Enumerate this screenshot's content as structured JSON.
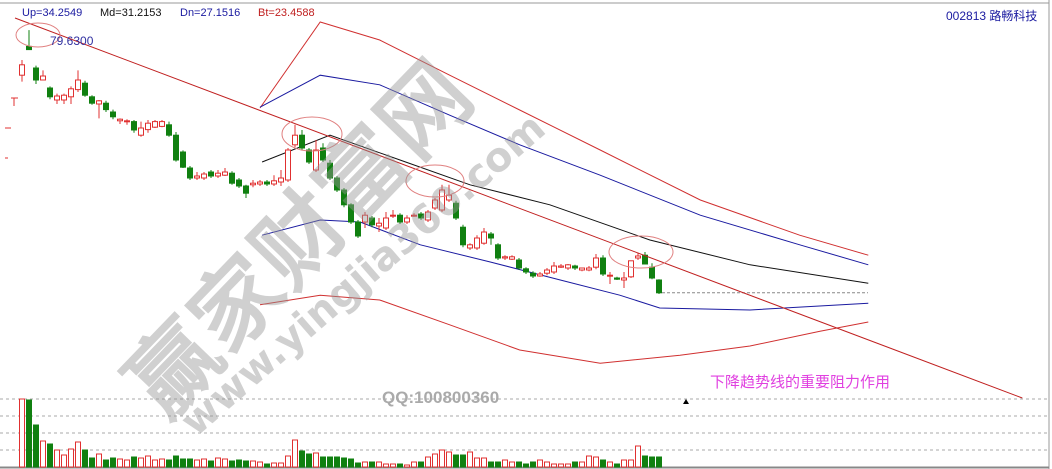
{
  "header": {
    "up": {
      "text": "Up=34.2549",
      "color": "#1a1aa0"
    },
    "md": {
      "text": "Md=31.2153",
      "color": "#111111"
    },
    "dn": {
      "text": "Dn=27.1516",
      "color": "#1a1aa0"
    },
    "bt": {
      "text": "Bt=23.4588",
      "color": "#c02020"
    },
    "stock": "002813 路畅科技"
  },
  "watermark": {
    "brand": "赢家财富网",
    "site": "www.yingjia360.com",
    "qq": "QQ:100800360"
  },
  "annotation": "下降趋势线的重要阻力作用",
  "colors": {
    "up": "#e03030",
    "down": "#108010",
    "trendline": "#c02020",
    "boll_outer": "#d03030",
    "boll_inner": "#1a1aa0",
    "boll_mid": "#111111",
    "annotation": "#e040e0"
  },
  "chart_data": {
    "type": "candlestick",
    "high_label": "79.6300",
    "candles": [
      [
        74.0,
        75.9,
        73.2,
        75.3
      ],
      [
        77.6,
        79.63,
        77.2,
        77.2
      ],
      [
        74.9,
        75.2,
        72.9,
        73.4
      ],
      [
        73.4,
        74.6,
        73.4,
        73.9
      ],
      [
        72.4,
        72.6,
        71.0,
        71.3
      ],
      [
        70.9,
        71.7,
        70.4,
        71.4
      ],
      [
        70.9,
        71.7,
        70.4,
        71.5
      ],
      [
        71.3,
        72.6,
        70.4,
        72.3
      ],
      [
        72.2,
        74.6,
        71.9,
        73.4
      ],
      [
        73.0,
        73.3,
        71.3,
        71.5
      ],
      [
        71.3,
        71.5,
        70.3,
        70.5
      ],
      [
        70.4,
        70.9,
        68.6,
        70.8
      ],
      [
        70.5,
        70.8,
        69.4,
        69.7
      ],
      [
        69.4,
        69.7,
        68.5,
        68.8
      ],
      [
        68.3,
        68.6,
        67.9,
        68.5
      ],
      [
        68.2,
        68.5,
        67.8,
        68.3
      ],
      [
        68.2,
        68.4,
        66.8,
        67.15
      ],
      [
        66.5,
        68.2,
        66.3,
        67.4
      ],
      [
        67.2,
        68.4,
        66.8,
        68.0
      ],
      [
        67.5,
        68.4,
        67.4,
        68.2
      ],
      [
        67.6,
        68.4,
        67.5,
        68.2
      ],
      [
        67.8,
        68.2,
        66.3,
        66.5
      ],
      [
        66.5,
        66.9,
        63.2,
        63.4
      ],
      [
        64.4,
        64.6,
        62.4,
        62.5
      ],
      [
        62.4,
        62.65,
        60.9,
        61.15
      ],
      [
        61.15,
        61.9,
        60.9,
        61.4
      ],
      [
        61.15,
        61.9,
        60.9,
        61.65
      ],
      [
        61.9,
        62.15,
        61.15,
        61.4
      ],
      [
        61.4,
        62.15,
        61.15,
        61.75
      ],
      [
        61.5,
        62.4,
        61.4,
        61.9
      ],
      [
        61.75,
        62.0,
        60.3,
        60.5
      ],
      [
        60.9,
        61.15,
        59.9,
        60.15
      ],
      [
        60.15,
        60.3,
        58.65,
        59.25
      ],
      [
        60.3,
        60.9,
        60.0,
        60.5
      ],
      [
        60.4,
        60.9,
        60.15,
        60.65
      ],
      [
        60.65,
        60.9,
        60.15,
        60.4
      ],
      [
        60.4,
        61.5,
        60.15,
        60.8
      ],
      [
        60.65,
        62.15,
        60.15,
        61.15
      ],
      [
        60.9,
        64.9,
        60.65,
        64.65
      ],
      [
        65.3,
        67.8,
        65.0,
        66.5
      ],
      [
        66.5,
        67.15,
        64.65,
        64.9
      ],
      [
        64.65,
        64.9,
        62.9,
        63.15
      ],
      [
        62.15,
        65.9,
        61.9,
        64.65
      ],
      [
        64.9,
        65.5,
        63.15,
        63.4
      ],
      [
        63.0,
        63.4,
        60.9,
        61.15
      ],
      [
        61.15,
        61.4,
        59.4,
        59.65
      ],
      [
        59.65,
        59.9,
        57.5,
        57.8
      ],
      [
        57.8,
        58.0,
        55.4,
        55.65
      ],
      [
        55.65,
        55.9,
        53.65,
        53.9
      ],
      [
        55.65,
        56.9,
        54.9,
        56.5
      ],
      [
        56.15,
        56.4,
        55.0,
        55.3
      ],
      [
        55.15,
        56.15,
        54.4,
        55.5
      ],
      [
        54.9,
        56.9,
        54.65,
        56.15
      ],
      [
        56.4,
        57.15,
        56.15,
        56.5
      ],
      [
        56.5,
        56.75,
        55.4,
        55.65
      ],
      [
        55.65,
        56.5,
        55.4,
        56.15
      ],
      [
        56.4,
        56.75,
        56.3,
        56.5
      ],
      [
        56.65,
        56.9,
        55.9,
        56.15
      ],
      [
        55.9,
        57.15,
        55.65,
        56.9
      ],
      [
        57.4,
        58.65,
        57.15,
        58.4
      ],
      [
        57.15,
        60.3,
        56.9,
        59.65
      ],
      [
        58.4,
        60.3,
        58.15,
        59.0
      ],
      [
        58.0,
        58.3,
        55.9,
        56.15
      ],
      [
        55.0,
        55.3,
        52.5,
        52.8
      ],
      [
        52.4,
        53.0,
        52.15,
        52.8
      ],
      [
        52.4,
        54.0,
        52.15,
        53.65
      ],
      [
        53.0,
        54.9,
        52.8,
        54.4
      ],
      [
        54.15,
        54.4,
        52.8,
        53.65
      ],
      [
        52.8,
        53.0,
        50.9,
        51.15
      ],
      [
        51.15,
        51.5,
        50.9,
        51.3
      ],
      [
        51.0,
        51.5,
        50.9,
        51.3
      ],
      [
        50.9,
        51.15,
        49.65,
        49.9
      ],
      [
        49.8,
        50.0,
        49.15,
        49.4
      ],
      [
        49.25,
        49.5,
        48.65,
        48.9
      ],
      [
        48.9,
        49.4,
        48.8,
        49.15
      ],
      [
        49.25,
        49.9,
        49.0,
        49.65
      ],
      [
        49.4,
        50.65,
        49.15,
        50.15
      ],
      [
        50.0,
        50.4,
        49.9,
        50.15
      ],
      [
        49.9,
        50.4,
        49.65,
        50.3
      ],
      [
        50.15,
        50.3,
        49.65,
        49.9
      ],
      [
        49.65,
        49.9,
        49.5,
        49.9
      ],
      [
        49.65,
        50.15,
        49.5,
        49.9
      ],
      [
        50.0,
        51.65,
        49.75,
        51.15
      ],
      [
        51.15,
        51.5,
        48.9,
        49.15
      ],
      [
        48.9,
        49.4,
        47.9,
        49.0
      ],
      [
        48.65,
        48.8,
        48.4,
        48.5
      ],
      [
        48.4,
        49.4,
        47.4,
        48.65
      ],
      [
        48.8,
        50.8,
        48.65,
        50.8
      ],
      [
        51.15,
        51.8,
        50.9,
        51.4
      ],
      [
        51.5,
        51.9,
        50.4,
        50.4
      ],
      [
        50.0,
        50.5,
        48.5,
        48.65
      ],
      [
        48.4,
        48.5,
        46.65,
        46.8
      ]
    ],
    "volume": [
      68,
      67,
      42,
      26,
      23,
      17,
      12,
      18,
      25,
      17,
      9,
      13,
      7,
      9,
      8,
      7,
      10,
      9,
      11,
      7,
      8,
      7,
      11,
      8,
      8,
      7,
      8,
      6,
      9,
      8,
      6,
      7,
      6,
      6,
      5,
      3,
      4,
      4,
      11,
      27,
      16,
      13,
      14,
      10,
      10,
      10,
      9,
      8,
      4,
      5,
      5,
      5,
      3,
      3,
      3,
      2,
      5,
      5,
      10,
      13,
      17,
      15,
      12,
      12,
      15,
      9,
      9,
      5,
      5,
      7,
      5,
      5,
      3,
      5,
      7,
      5,
      3,
      3,
      3,
      5,
      5,
      11,
      10,
      7,
      5,
      3,
      7,
      7,
      21,
      11,
      10,
      10
    ],
    "bollinger": {
      "outer_upper": [
        [
          34,
          69.9
        ],
        [
          42.6,
          80.65
        ],
        [
          51.1,
          78.4
        ],
        [
          61.1,
          74.0
        ],
        [
          71.1,
          69.65
        ],
        [
          82.6,
          64.65
        ],
        [
          96.9,
          58.4
        ],
        [
          111.1,
          54.0
        ],
        [
          120.9,
          51.5
        ]
      ],
      "inner_upper": [
        [
          34,
          70.0
        ],
        [
          42.6,
          74.0
        ],
        [
          51.1,
          72.8
        ],
        [
          61.1,
          69.0
        ],
        [
          71.1,
          65.3
        ],
        [
          82.6,
          61.5
        ],
        [
          96.9,
          56.5
        ],
        [
          111.1,
          52.8
        ],
        [
          120.9,
          50.3
        ]
      ],
      "middle": [
        [
          34.3,
          63.15
        ],
        [
          44,
          66.5
        ],
        [
          54,
          63.4
        ],
        [
          64,
          60.3
        ],
        [
          75.4,
          57.8
        ],
        [
          89.7,
          53.4
        ],
        [
          104,
          50.3
        ],
        [
          120.9,
          48.0
        ]
      ],
      "inner_lower": [
        [
          34.3,
          54.0
        ],
        [
          42.6,
          55.9
        ],
        [
          48.3,
          55.65
        ],
        [
          56.9,
          52.8
        ],
        [
          66.9,
          50.65
        ],
        [
          76.9,
          48.4
        ],
        [
          85.4,
          46.5
        ],
        [
          91.1,
          44.9
        ],
        [
          104,
          44.65
        ],
        [
          120.9,
          45.5
        ]
      ],
      "outer_lower": [
        [
          34,
          45.3
        ],
        [
          42.6,
          46.5
        ],
        [
          51.1,
          45.9
        ],
        [
          61.1,
          42.8
        ],
        [
          71.1,
          39.65
        ],
        [
          82.6,
          38.0
        ],
        [
          94,
          39.0
        ],
        [
          104,
          40.15
        ],
        [
          114,
          42.0
        ],
        [
          120.9,
          43.15
        ]
      ]
    },
    "trendline": [
      [
        -1,
        81.15
      ],
      [
        142.9,
        33.65
      ]
    ],
    "last_close_line": 46.8
  }
}
